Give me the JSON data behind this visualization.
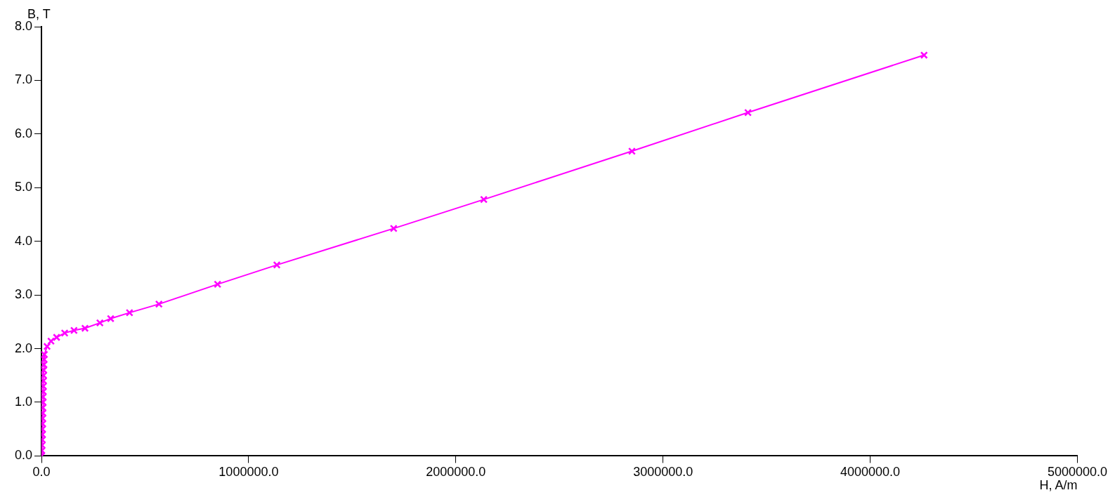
{
  "chart_data": {
    "type": "line",
    "xlabel": "H, A/m",
    "ylabel": "B, T",
    "marker": "cross",
    "line_style": "solid",
    "grid": false,
    "legend": false,
    "xlim": [
      0,
      5000000
    ],
    "ylim": [
      0,
      8
    ],
    "xticks": [
      {
        "value": 0,
        "label": "0.0"
      },
      {
        "value": 1000000,
        "label": "1000000.0"
      },
      {
        "value": 2000000,
        "label": "2000000.0"
      },
      {
        "value": 3000000,
        "label": "3000000.0"
      },
      {
        "value": 4000000,
        "label": "4000000.0"
      },
      {
        "value": 5000000,
        "label": "5000000.0"
      }
    ],
    "yticks": [
      {
        "value": 0,
        "label": "0.0"
      },
      {
        "value": 1,
        "label": "1.0"
      },
      {
        "value": 2,
        "label": "2.0"
      },
      {
        "value": 3,
        "label": "3.0"
      },
      {
        "value": 4,
        "label": "4.0"
      },
      {
        "value": 5,
        "label": "5.0"
      },
      {
        "value": 6,
        "label": "6.0"
      },
      {
        "value": 7,
        "label": "7.0"
      },
      {
        "value": 8,
        "label": "8.0"
      }
    ],
    "series": [
      {
        "color": "#ff00ff",
        "x": [
          0,
          2000,
          3000,
          4000,
          5000,
          5000,
          6000,
          6000,
          7000,
          7000,
          8000,
          8000,
          9000,
          9000,
          10000,
          10000,
          11000,
          12000,
          13000,
          14000,
          27000,
          46000,
          73000,
          112000,
          157000,
          210000,
          282000,
          334000,
          425000,
          567000,
          850000,
          1136000,
          1700000,
          2135000,
          2850000,
          3410000,
          4260000
        ],
        "values": [
          0,
          0.1,
          0.2,
          0.3,
          0.4,
          0.5,
          0.6,
          0.7,
          0.8,
          0.9,
          1.0,
          1.1,
          1.2,
          1.3,
          1.4,
          1.5,
          1.6,
          1.7,
          1.8,
          1.89,
          2.04,
          2.14,
          2.21,
          2.29,
          2.34,
          2.38,
          2.48,
          2.56,
          2.67,
          2.83,
          3.2,
          3.56,
          4.24,
          4.78,
          5.68,
          6.4,
          7.47
        ]
      }
    ]
  }
}
